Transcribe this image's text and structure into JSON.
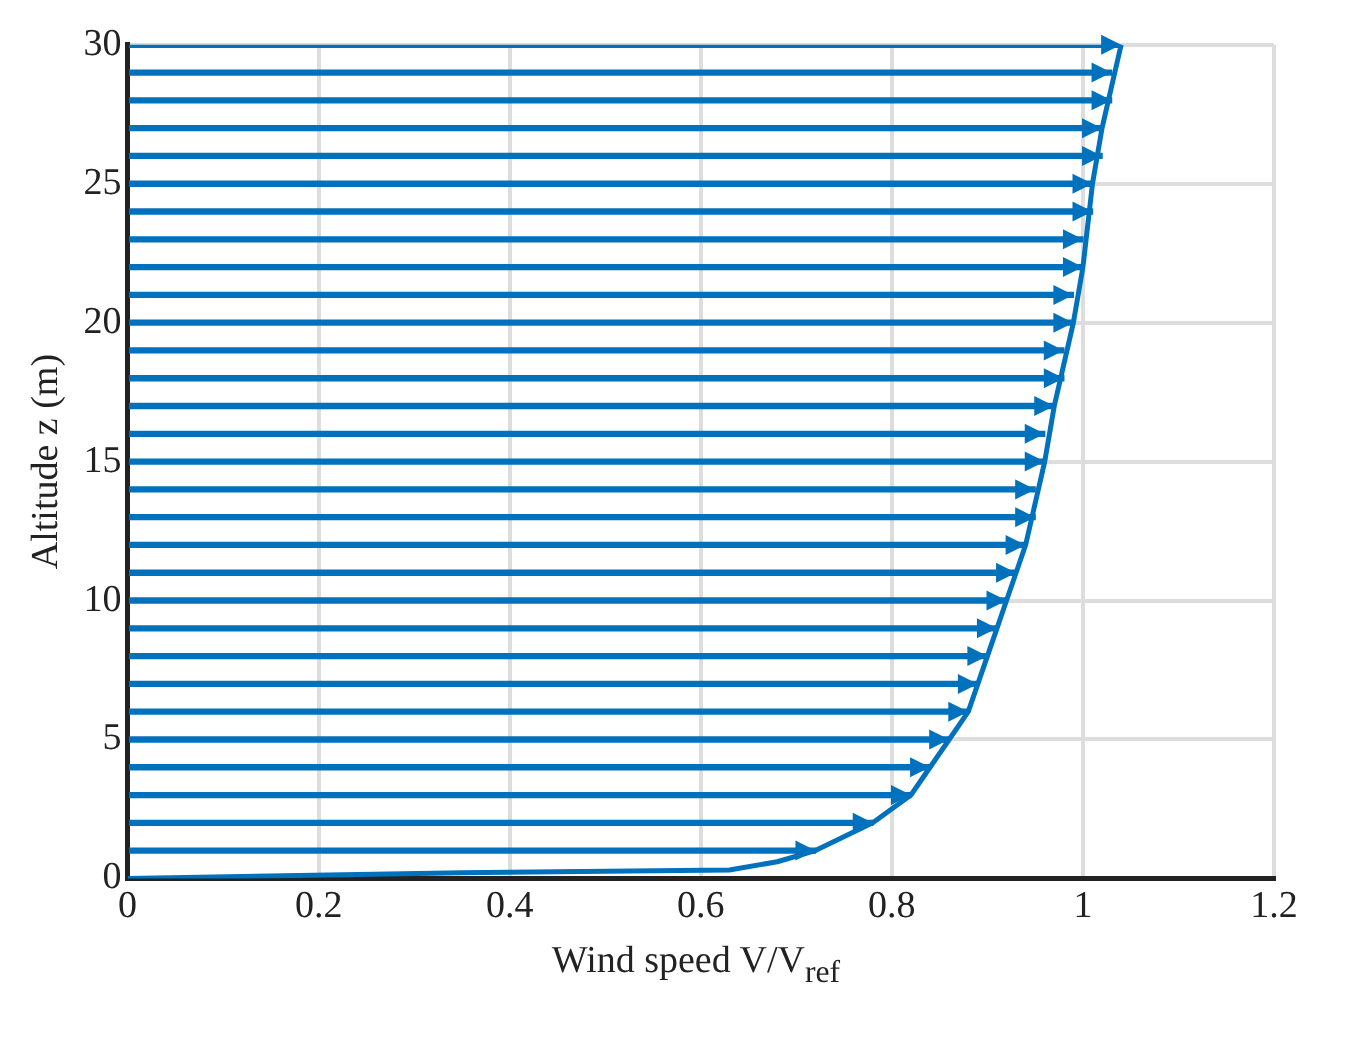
{
  "chart_data": {
    "type": "bar",
    "orientation": "horizontal",
    "xlabel": "Wind speed V/V$_{ref}$",
    "ylabel": "Altitude z (m)",
    "xlim": [
      0,
      1.2
    ],
    "xticks": [
      0,
      0.2,
      0.4,
      0.6,
      0.8,
      1,
      1.2
    ],
    "ylim": [
      0,
      30
    ],
    "yticks": [
      0,
      5,
      10,
      15,
      20,
      25,
      30
    ],
    "grid": true,
    "series": [
      {
        "type": "line",
        "color": "#0072bd",
        "x": [
          0,
          0.2,
          0.3,
          0.6,
          1,
          2,
          3,
          4,
          5,
          6,
          7,
          8,
          9,
          10,
          12,
          15,
          17,
          20,
          22,
          25,
          27,
          30
        ],
        "values": [
          0,
          0.35,
          0.63,
          0.68,
          0.72,
          0.78,
          0.82,
          0.84,
          0.86,
          0.88,
          0.89,
          0.9,
          0.91,
          0.92,
          0.94,
          0.96,
          0.97,
          0.99,
          1.0,
          1.01,
          1.02,
          1.04
        ]
      },
      {
        "color": "#0072bd",
        "marker": "triangle",
        "x": [
          1,
          2,
          3,
          4,
          5,
          6,
          7,
          8,
          9,
          10,
          11,
          12,
          13,
          14,
          15,
          16,
          17,
          18,
          19,
          20,
          21,
          22,
          23,
          24,
          25,
          26,
          27,
          28,
          29,
          30
        ],
        "values": [
          0.72,
          0.78,
          0.82,
          0.84,
          0.86,
          0.88,
          0.89,
          0.9,
          0.91,
          0.92,
          0.93,
          0.94,
          0.95,
          0.95,
          0.96,
          0.96,
          0.97,
          0.98,
          0.98,
          0.99,
          0.99,
          1.0,
          1.0,
          1.01,
          1.01,
          1.02,
          1.02,
          1.03,
          1.03,
          1.04
        ]
      }
    ]
  }
}
